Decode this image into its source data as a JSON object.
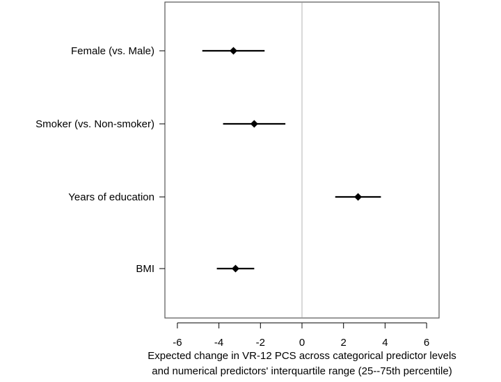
{
  "chart_data": {
    "type": "forest",
    "title": "",
    "xlabel_lines": [
      "Expected change in VR-12 PCS across categorical predictor levels",
      "and numerical predictors' interquartile range (25--75th percentile)"
    ],
    "xlim": [
      -6.6,
      6.6
    ],
    "xticks": [
      -6,
      -4,
      -2,
      0,
      2,
      4,
      6
    ],
    "xtick_labels": [
      "-6",
      "-4",
      "-2",
      "0",
      "2",
      "4",
      "6"
    ],
    "reference_line": 0,
    "reference_line_color": "#cccccc",
    "point_color": "#000000",
    "rows": [
      {
        "label": "Female (vs. Male)",
        "estimate": -3.3,
        "lower": -4.8,
        "upper": -1.8
      },
      {
        "label": "Smoker (vs. Non-smoker)",
        "estimate": -2.3,
        "lower": -3.8,
        "upper": -0.8
      },
      {
        "label": "Years of education",
        "estimate": 2.7,
        "lower": 1.6,
        "upper": 3.8
      },
      {
        "label": "BMI",
        "estimate": -3.2,
        "lower": -4.1,
        "upper": -2.3
      }
    ]
  }
}
